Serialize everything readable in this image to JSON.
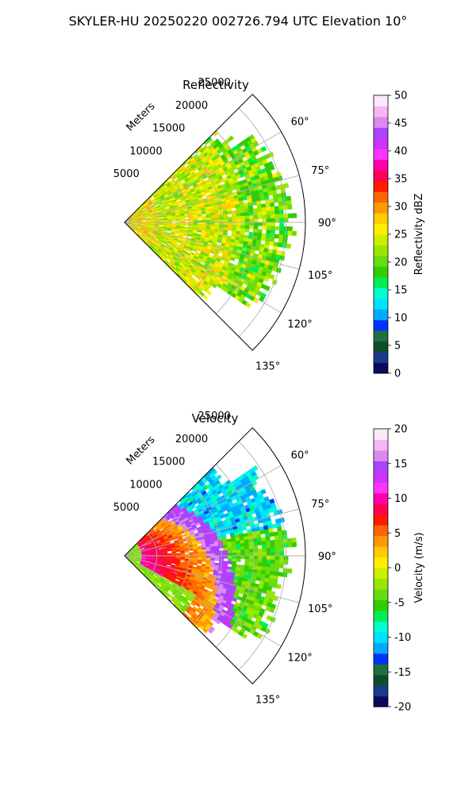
{
  "suptitle": "SKYLER-HU  20250220  002726.794 UTC Elevation 10°",
  "chart_data": [
    {
      "type": "heatmap",
      "subtype": "polar-sector (radar PPI)",
      "title": "Reflectivity",
      "radial_label": "Meters",
      "radial_ticks": [
        "5000",
        "10000",
        "15000",
        "20000",
        "25000"
      ],
      "radial_tick_values": [
        5000,
        10000,
        15000,
        20000,
        25000
      ],
      "angle_ticks": [
        "60°",
        "75°",
        "90°",
        "105°",
        "120°",
        "135°"
      ],
      "angle_tick_values": [
        60,
        75,
        90,
        105,
        120,
        135
      ],
      "azimuth_range_deg": [
        45,
        135
      ],
      "range_max_m": 28000,
      "grid": true,
      "colorbar": {
        "label": "Reflectivity dBZ",
        "min": 0,
        "max": 50,
        "ticks": [
          "0",
          "5",
          "10",
          "15",
          "20",
          "25",
          "30",
          "35",
          "40",
          "45",
          "50"
        ],
        "tick_values": [
          0,
          5,
          10,
          15,
          20,
          25,
          30,
          35,
          40,
          45,
          50
        ],
        "colors": [
          "#0a0a5a",
          "#1a3a8a",
          "#0f4d2a",
          "#1f6f3f",
          "#0033ff",
          "#00aaff",
          "#00e0ff",
          "#00ffcc",
          "#00ee55",
          "#33cc00",
          "#66dd11",
          "#99e600",
          "#ccee00",
          "#ffee00",
          "#ffcc00",
          "#ff9900",
          "#ff6600",
          "#ff1a00",
          "#ff0055",
          "#ff00aa",
          "#ff33ff",
          "#cc33ff",
          "#aa44ff",
          "#dd88ee",
          "#f4b6f4",
          "#fde8fd"
        ]
      },
      "field_summary": {
        "near_radar_0_5km": 26,
        "mid_range_5_18km": 24,
        "far_range_18_28km": 21,
        "typical_range_dBZ": [
          18,
          28
        ]
      }
    },
    {
      "type": "heatmap",
      "subtype": "polar-sector (radar PPI)",
      "title": "Velocity",
      "radial_label": "Meters",
      "radial_ticks": [
        "5000",
        "10000",
        "15000",
        "20000",
        "25000"
      ],
      "radial_tick_values": [
        5000,
        10000,
        15000,
        20000,
        25000
      ],
      "angle_ticks": [
        "60°",
        "75°",
        "90°",
        "105°",
        "120°",
        "135°"
      ],
      "angle_tick_values": [
        60,
        75,
        90,
        105,
        120,
        135
      ],
      "azimuth_range_deg": [
        45,
        135
      ],
      "range_max_m": 28000,
      "grid": true,
      "colorbar": {
        "label": "Velocity (m/s)",
        "min": -20,
        "max": 20,
        "ticks": [
          "-20",
          "-15",
          "-10",
          "-5",
          "0",
          "5",
          "10",
          "15",
          "20"
        ],
        "tick_values": [
          -20,
          -15,
          -10,
          -5,
          0,
          5,
          10,
          15,
          20
        ],
        "colors": [
          "#0a0a5a",
          "#1a3a8a",
          "#0f4d2a",
          "#1f6f3f",
          "#0033ff",
          "#00aaff",
          "#00e0ff",
          "#00ffcc",
          "#00ee55",
          "#33cc00",
          "#66dd11",
          "#99e600",
          "#ccee00",
          "#ffee00",
          "#ffcc00",
          "#ff9900",
          "#ff6600",
          "#ff1a00",
          "#ff0055",
          "#ff00aa",
          "#ff33ff",
          "#cc33ff",
          "#aa44ff",
          "#dd88ee",
          "#f4b6f4",
          "#fde8fd"
        ]
      },
      "field_summary": {
        "near_radar_0_3km_m_s": -3,
        "inner_band_m_s": [
          8,
          12
        ],
        "outer_shear_band_m_s": [
          14,
          16
        ],
        "far_north_m_s": -10,
        "far_east_m_s": -4
      }
    }
  ]
}
